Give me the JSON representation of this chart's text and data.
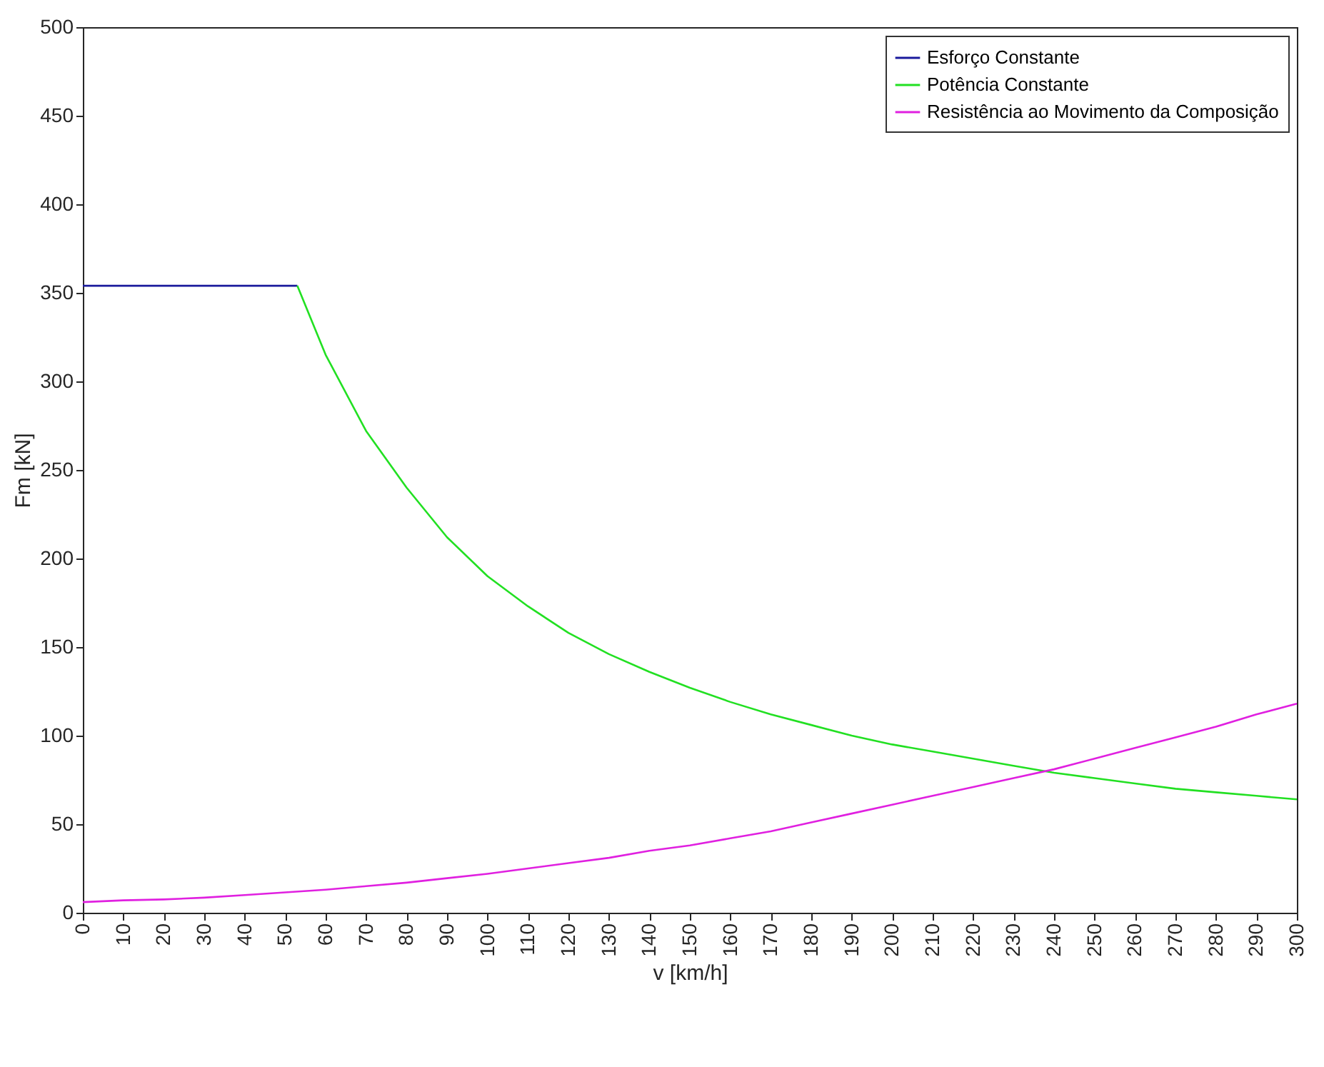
{
  "chart_data": {
    "type": "line",
    "xlabel": "v [km/h]",
    "ylabel": "Fm [kN]",
    "xlim": [
      0,
      300
    ],
    "ylim": [
      0,
      500
    ],
    "xticks": [
      0,
      10,
      20,
      30,
      40,
      50,
      60,
      70,
      80,
      90,
      100,
      110,
      120,
      130,
      140,
      150,
      160,
      170,
      180,
      190,
      200,
      210,
      220,
      230,
      240,
      250,
      260,
      270,
      280,
      290,
      300
    ],
    "yticks": [
      0,
      50,
      100,
      150,
      200,
      250,
      300,
      350,
      400,
      450,
      500
    ],
    "grid": false,
    "legend": "top right",
    "line_style": "solid",
    "marker": "none",
    "series": [
      {
        "name": "Esforço Constante",
        "color": "#1a1a9c",
        "x": [
          0,
          53
        ],
        "values": [
          354,
          354
        ]
      },
      {
        "name": "Potência Constante",
        "color": "#22e022",
        "x": [
          53,
          60,
          70,
          80,
          90,
          100,
          110,
          120,
          130,
          140,
          150,
          160,
          170,
          180,
          190,
          200,
          210,
          220,
          230,
          240,
          250,
          260,
          270,
          280,
          290,
          300
        ],
        "values": [
          354,
          315,
          272,
          240,
          212,
          190,
          173,
          158,
          146,
          136,
          127,
          119,
          112,
          106,
          100,
          95,
          91,
          87,
          83,
          79,
          76,
          73,
          70,
          68,
          66,
          64
        ]
      },
      {
        "name": "Resistência ao Movimento da Composição",
        "color": "#e020e0",
        "x": [
          0,
          10,
          20,
          30,
          40,
          50,
          60,
          70,
          80,
          90,
          100,
          110,
          120,
          130,
          140,
          150,
          160,
          170,
          180,
          190,
          200,
          210,
          220,
          230,
          240,
          250,
          260,
          270,
          280,
          290,
          300
        ],
        "values": [
          6,
          7,
          7.5,
          8.5,
          10,
          11.5,
          13,
          15,
          17,
          19.5,
          22,
          25,
          28,
          31,
          35,
          38,
          42,
          46,
          51,
          56,
          61,
          66,
          71,
          76,
          81,
          87,
          93,
          99,
          105,
          112,
          118
        ]
      }
    ]
  }
}
